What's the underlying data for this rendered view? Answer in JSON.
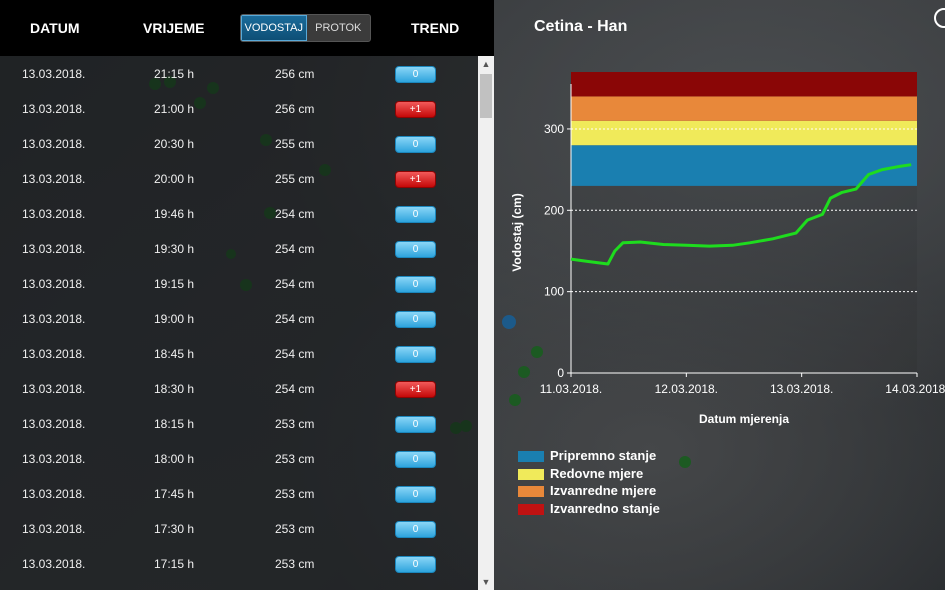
{
  "table": {
    "headers": {
      "date": "DATUM",
      "time": "VRIJEME",
      "trend": "TREND"
    },
    "toggle": {
      "option_level": "VODOSTAJ",
      "option_flow": "PROTOK",
      "active": "VODOSTAJ"
    },
    "rows": [
      {
        "date": "13.03.2018.",
        "time": "21:15 h",
        "level": "256 cm",
        "trend": "0",
        "trend_color": "blue"
      },
      {
        "date": "13.03.2018.",
        "time": "21:00 h",
        "level": "256 cm",
        "trend": "+1",
        "trend_color": "red"
      },
      {
        "date": "13.03.2018.",
        "time": "20:30 h",
        "level": "255 cm",
        "trend": "0",
        "trend_color": "blue"
      },
      {
        "date": "13.03.2018.",
        "time": "20:00 h",
        "level": "255 cm",
        "trend": "+1",
        "trend_color": "red"
      },
      {
        "date": "13.03.2018.",
        "time": "19:46 h",
        "level": "254 cm",
        "trend": "0",
        "trend_color": "blue"
      },
      {
        "date": "13.03.2018.",
        "time": "19:30 h",
        "level": "254 cm",
        "trend": "0",
        "trend_color": "blue"
      },
      {
        "date": "13.03.2018.",
        "time": "19:15 h",
        "level": "254 cm",
        "trend": "0",
        "trend_color": "blue"
      },
      {
        "date": "13.03.2018.",
        "time": "19:00 h",
        "level": "254 cm",
        "trend": "0",
        "trend_color": "blue"
      },
      {
        "date": "13.03.2018.",
        "time": "18:45 h",
        "level": "254 cm",
        "trend": "0",
        "trend_color": "blue"
      },
      {
        "date": "13.03.2018.",
        "time": "18:30 h",
        "level": "254 cm",
        "trend": "+1",
        "trend_color": "red"
      },
      {
        "date": "13.03.2018.",
        "time": "18:15 h",
        "level": "253 cm",
        "trend": "0",
        "trend_color": "blue"
      },
      {
        "date": "13.03.2018.",
        "time": "18:00 h",
        "level": "253 cm",
        "trend": "0",
        "trend_color": "blue"
      },
      {
        "date": "13.03.2018.",
        "time": "17:45 h",
        "level": "253 cm",
        "trend": "0",
        "trend_color": "blue"
      },
      {
        "date": "13.03.2018.",
        "time": "17:30 h",
        "level": "253 cm",
        "trend": "0",
        "trend_color": "blue"
      },
      {
        "date": "13.03.2018.",
        "time": "17:15 h",
        "level": "253 cm",
        "trend": "0",
        "trend_color": "blue"
      }
    ]
  },
  "chart": {
    "title": "Cetina - Han",
    "ylabel": "Vodostaj (cm)",
    "xlabel": "Datum mjerenja",
    "legend": [
      {
        "label": "Pripremno stanje",
        "color": "#1a7fb0"
      },
      {
        "label": "Redovne mjere",
        "color": "#f0ea5a"
      },
      {
        "label": "Izvanredne mjere",
        "color": "#e8883a"
      },
      {
        "label": "Izvanredno stanje",
        "color": "#c01212"
      }
    ]
  },
  "chart_data": {
    "type": "line",
    "title": "Cetina - Han",
    "xlabel": "Datum mjerenja",
    "ylabel": "Vodostaj (cm)",
    "x_ticks": [
      "11.03.2018.",
      "12.03.2018.",
      "13.03.2018.",
      "14.03.2018."
    ],
    "y_ticks": [
      0,
      100,
      200,
      300
    ],
    "ylim": [
      0,
      370
    ],
    "xlim_days": [
      0,
      3
    ],
    "grid": "dashed horizontal lines at 100, 200, 300",
    "bands": [
      {
        "name": "Pripremno stanje",
        "from": 230,
        "to": 280,
        "color": "#1a7fb0"
      },
      {
        "name": "Redovne mjere",
        "from": 280,
        "to": 310,
        "color": "#f0ea5a"
      },
      {
        "name": "Izvanredne mjere",
        "from": 310,
        "to": 340,
        "color": "#e8883a"
      },
      {
        "name": "Izvanredno stanje",
        "from": 340,
        "to": 370,
        "color": "#8a0606"
      }
    ],
    "series": [
      {
        "color": "#1edc1e",
        "points": [
          [
            0.0,
            140
          ],
          [
            0.15,
            137
          ],
          [
            0.32,
            134
          ],
          [
            0.38,
            150
          ],
          [
            0.45,
            160
          ],
          [
            0.6,
            161
          ],
          [
            0.8,
            158
          ],
          [
            1.0,
            157
          ],
          [
            1.2,
            156
          ],
          [
            1.4,
            157
          ],
          [
            1.55,
            160
          ],
          [
            1.75,
            165
          ],
          [
            1.95,
            172
          ],
          [
            2.05,
            188
          ],
          [
            2.18,
            195
          ],
          [
            2.25,
            215
          ],
          [
            2.35,
            222
          ],
          [
            2.47,
            226
          ],
          [
            2.58,
            244
          ],
          [
            2.7,
            250
          ],
          [
            2.85,
            254
          ],
          [
            2.95,
            256
          ]
        ]
      }
    ]
  }
}
